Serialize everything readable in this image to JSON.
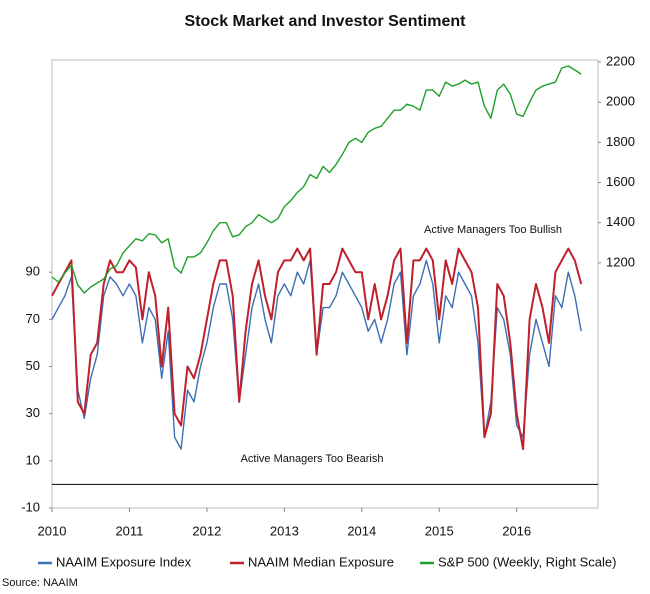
{
  "chart_data": {
    "type": "line",
    "title": "Stock Market and Investor Sentiment",
    "source": "Source: NAAIM",
    "annotations": [
      "Active Managers Too Bullish",
      "Active Managers Too Bearish"
    ],
    "x": [
      2010,
      2010.083,
      2010.167,
      2010.25,
      2010.333,
      2010.417,
      2010.5,
      2010.583,
      2010.667,
      2010.75,
      2010.833,
      2010.917,
      2011,
      2011.083,
      2011.167,
      2011.25,
      2011.333,
      2011.417,
      2011.5,
      2011.583,
      2011.667,
      2011.75,
      2011.833,
      2011.917,
      2012,
      2012.083,
      2012.167,
      2012.25,
      2012.333,
      2012.417,
      2012.5,
      2012.583,
      2012.667,
      2012.75,
      2012.833,
      2012.917,
      2013,
      2013.083,
      2013.167,
      2013.25,
      2013.333,
      2013.417,
      2013.5,
      2013.583,
      2013.667,
      2013.75,
      2013.833,
      2013.917,
      2014,
      2014.083,
      2014.167,
      2014.25,
      2014.333,
      2014.417,
      2014.5,
      2014.583,
      2014.667,
      2014.75,
      2014.833,
      2014.917,
      2015,
      2015.083,
      2015.167,
      2015.25,
      2015.333,
      2015.417,
      2015.5,
      2015.583,
      2015.667,
      2015.75,
      2015.833,
      2015.917,
      2016,
      2016.083,
      2016.167,
      2016.25,
      2016.333,
      2016.417,
      2016.5,
      2016.583,
      2016.667,
      2016.75,
      2016.833
    ],
    "series": [
      {
        "name": "NAAIM Exposure Index",
        "color": "#3a6fb5",
        "values": [
          70,
          75,
          80,
          88,
          40,
          28,
          45,
          55,
          80,
          88,
          85,
          80,
          85,
          80,
          60,
          75,
          70,
          45,
          65,
          20,
          15,
          40,
          35,
          50,
          60,
          75,
          85,
          85,
          70,
          35,
          55,
          75,
          85,
          70,
          60,
          80,
          85,
          80,
          90,
          85,
          95,
          55,
          75,
          75,
          80,
          90,
          85,
          80,
          75,
          65,
          70,
          60,
          70,
          85,
          90,
          55,
          80,
          85,
          95,
          85,
          60,
          80,
          75,
          90,
          85,
          80,
          60,
          20,
          35,
          75,
          70,
          55,
          25,
          20,
          55,
          70,
          60,
          50,
          80,
          75,
          90,
          80,
          65
        ]
      },
      {
        "name": "NAAIM Median Exposure",
        "color": "#c0202a",
        "values": [
          80,
          85,
          90,
          95,
          35,
          30,
          55,
          60,
          85,
          95,
          90,
          90,
          95,
          92,
          70,
          90,
          80,
          50,
          75,
          30,
          25,
          50,
          45,
          55,
          70,
          85,
          95,
          95,
          80,
          35,
          65,
          85,
          95,
          80,
          70,
          90,
          95,
          95,
          100,
          95,
          100,
          55,
          85,
          85,
          90,
          100,
          95,
          90,
          90,
          70,
          85,
          70,
          80,
          95,
          100,
          60,
          95,
          95,
          100,
          95,
          70,
          95,
          85,
          100,
          95,
          90,
          75,
          20,
          30,
          85,
          80,
          60,
          30,
          15,
          70,
          85,
          75,
          60,
          90,
          95,
          100,
          95,
          85
        ]
      },
      {
        "name": "S&P 500 (Weekly, Right Scale)",
        "color": "#1fa02a",
        "axis": "y2",
        "values": [
          1130,
          1105,
          1150,
          1190,
          1090,
          1050,
          1080,
          1100,
          1120,
          1170,
          1185,
          1250,
          1285,
          1320,
          1310,
          1345,
          1340,
          1300,
          1320,
          1180,
          1150,
          1230,
          1230,
          1250,
          1300,
          1360,
          1400,
          1400,
          1330,
          1340,
          1380,
          1400,
          1440,
          1420,
          1400,
          1420,
          1480,
          1510,
          1550,
          1580,
          1640,
          1620,
          1680,
          1650,
          1690,
          1740,
          1800,
          1820,
          1800,
          1850,
          1870,
          1880,
          1920,
          1960,
          1960,
          1990,
          1980,
          1960,
          2060,
          2060,
          2030,
          2100,
          2080,
          2090,
          2110,
          2090,
          2100,
          1980,
          1920,
          2060,
          2090,
          2040,
          1940,
          1930,
          2000,
          2060,
          2080,
          2090,
          2100,
          2170,
          2180,
          2160,
          2140
        ]
      }
    ],
    "xlim": [
      2010,
      2017.05
    ],
    "xticks": [
      2010,
      2011,
      2012,
      2013,
      2014,
      2015,
      2016
    ],
    "ylim": [
      -10,
      180
    ],
    "yticks": [
      -10,
      10,
      30,
      50,
      70,
      90
    ],
    "y2lim": [
      -20,
      2210
    ],
    "y2ticks": [
      1200,
      1400,
      1600,
      1800,
      2000,
      2200
    ],
    "reference_line": 0,
    "legend": "bottom"
  }
}
